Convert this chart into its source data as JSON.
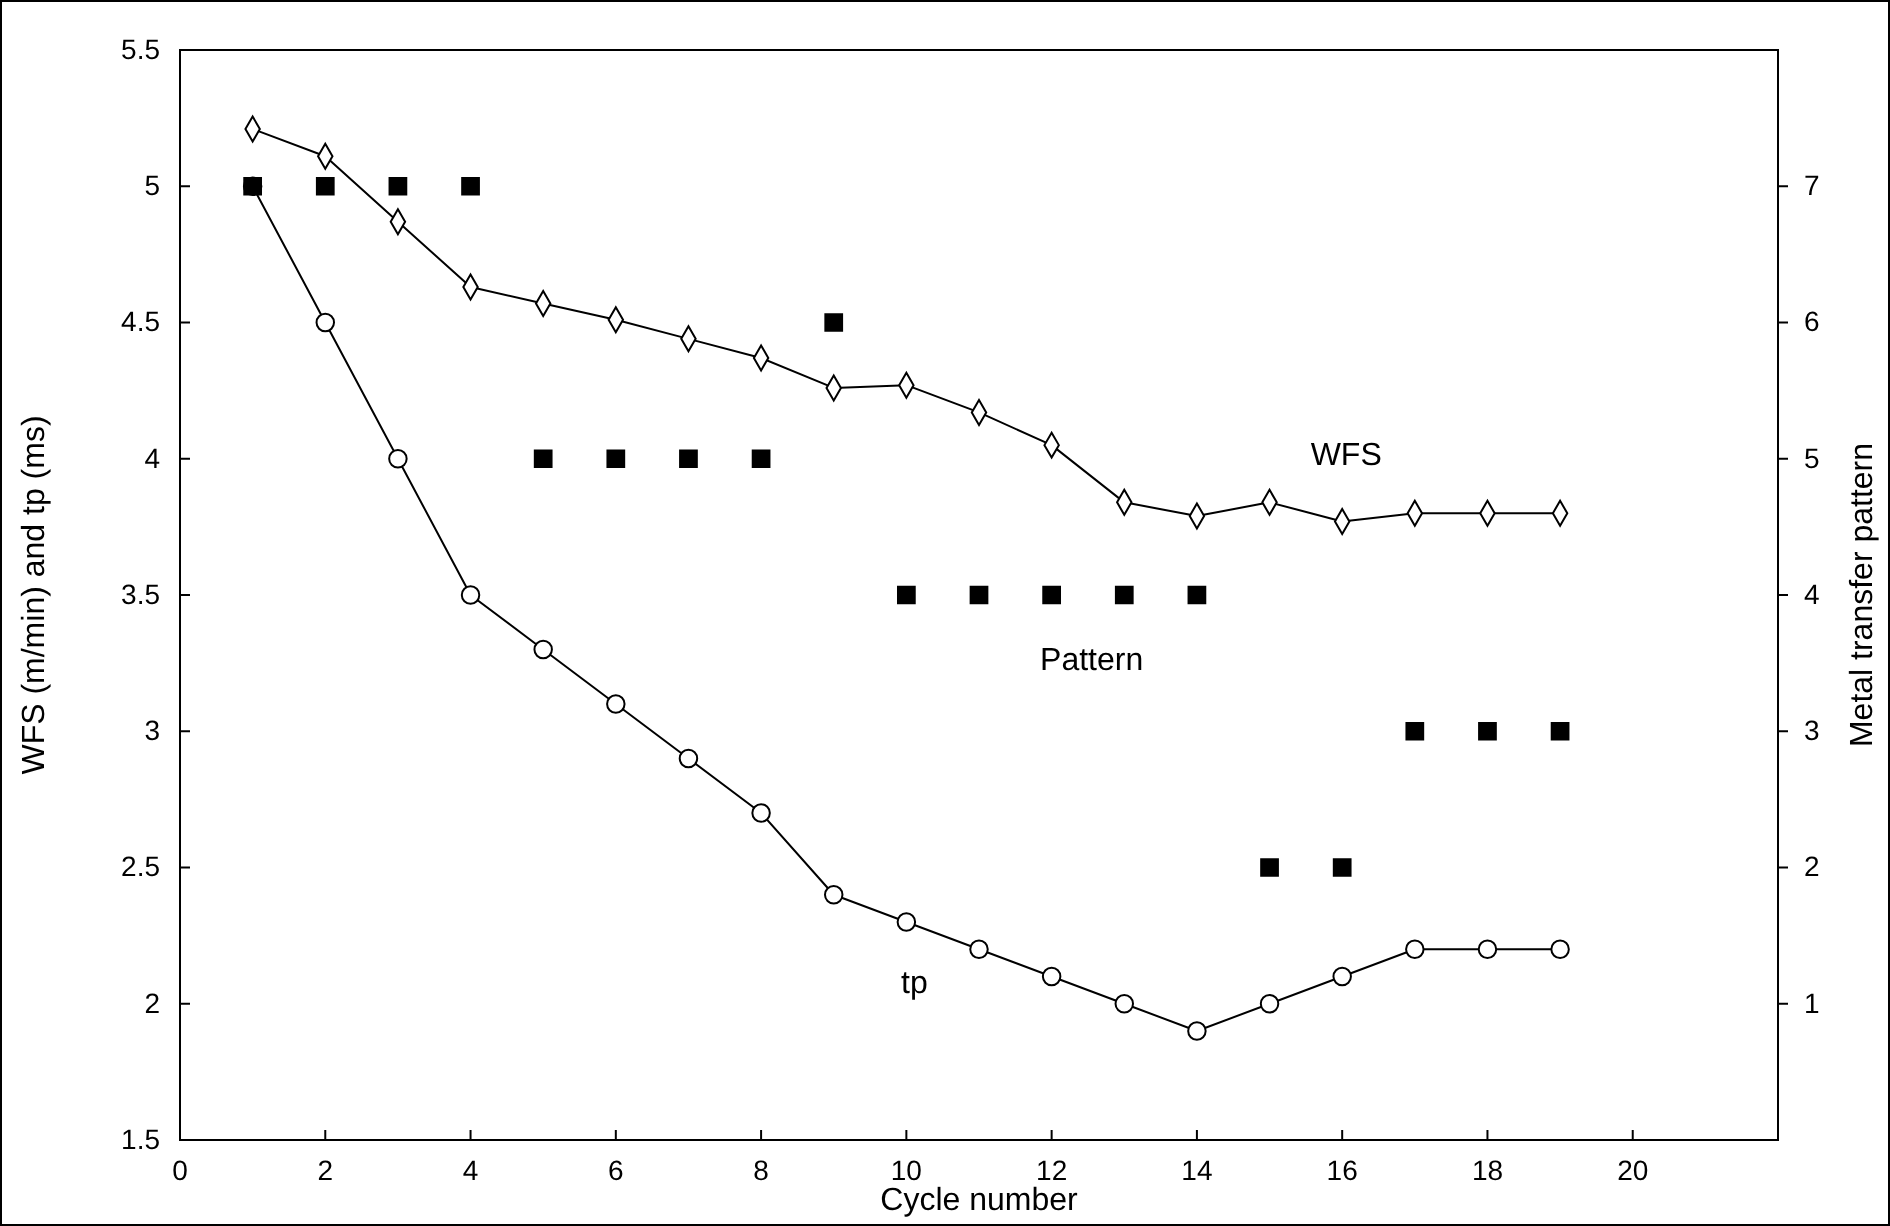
{
  "chart_data": {
    "type": "line",
    "xlabel": "Cycle number",
    "ylabel": "WFS (m/min) and tp (ms)",
    "y2label": "Metal transfer pattern",
    "x": [
      1,
      2,
      3,
      4,
      5,
      6,
      7,
      8,
      9,
      10,
      11,
      12,
      13,
      14,
      15,
      16,
      17,
      18,
      19
    ],
    "series": [
      {
        "name": "WFS",
        "color": "#000000",
        "marker": "diamond",
        "values": [
          5.21,
          5.11,
          4.87,
          4.63,
          4.57,
          4.51,
          4.44,
          4.37,
          4.26,
          4.27,
          4.17,
          4.05,
          3.84,
          3.79,
          3.84,
          3.77,
          3.8,
          3.8,
          3.8
        ]
      },
      {
        "name": "tp",
        "color": "#000000",
        "marker": "circle",
        "values": [
          5,
          4.5,
          4,
          3.5,
          3.3,
          3.1,
          2.9,
          2.7,
          2.4,
          2.3,
          2.2,
          2.1,
          2.0,
          1.9,
          2.0,
          2.1,
          2.2,
          2.2,
          2.2
        ]
      },
      {
        "name": "Pattern",
        "type": "scatter",
        "axis": "y2",
        "color": "#000000",
        "marker": "square",
        "values": [
          7,
          7,
          7,
          7,
          5,
          5,
          5,
          5,
          6,
          4,
          4,
          4,
          4,
          4,
          2,
          2,
          3,
          3,
          3
        ]
      }
    ],
    "xlim": [
      0,
      22
    ],
    "xticks": [
      0,
      2,
      4,
      6,
      8,
      10,
      12,
      14,
      16,
      18,
      20
    ],
    "ylim": [
      1.5,
      5.5
    ],
    "yticks": [
      1.5,
      2,
      2.5,
      3,
      3.5,
      4,
      4.5,
      5,
      5.5
    ],
    "y2lim": [
      0,
      8
    ],
    "y2ticks": [
      1,
      2,
      3,
      4,
      5,
      6,
      7
    ],
    "grid": false
  }
}
